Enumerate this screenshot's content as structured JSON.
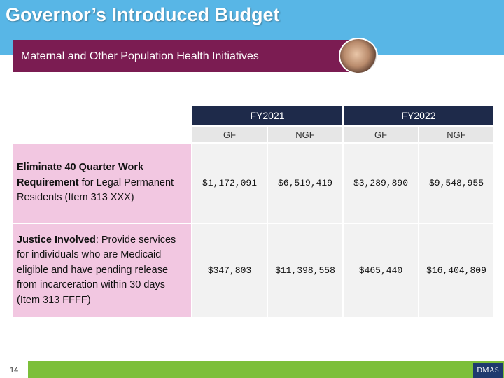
{
  "header": {
    "title": "Governor’s Introduced Budget",
    "subtitle": "Maternal and Other Population Health Initiatives"
  },
  "table": {
    "column_groups": [
      "FY2021",
      "FY2022"
    ],
    "columns": [
      "GF",
      "NGF",
      "GF",
      "NGF"
    ],
    "rows": [
      {
        "label_bold": "Eliminate 40 Quarter Work Requirement",
        "label_text": " for Legal Permanent Residents (Item 313 XXX)",
        "values": [
          "$1,172,091",
          "$6,519,419",
          "$3,289,890",
          "$9,548,955"
        ]
      },
      {
        "label_bold": "Justice Involved",
        "label_text": ": Provide services for individuals who are Medicaid eligible and have pending release from incarceration within 30 days (Item 313 FFFF)",
        "values": [
          "$347,803",
          "$11,398,558",
          "$465,440",
          "$16,404,809"
        ]
      }
    ]
  },
  "footer": {
    "page_number": "14",
    "logo": "DMAS"
  }
}
